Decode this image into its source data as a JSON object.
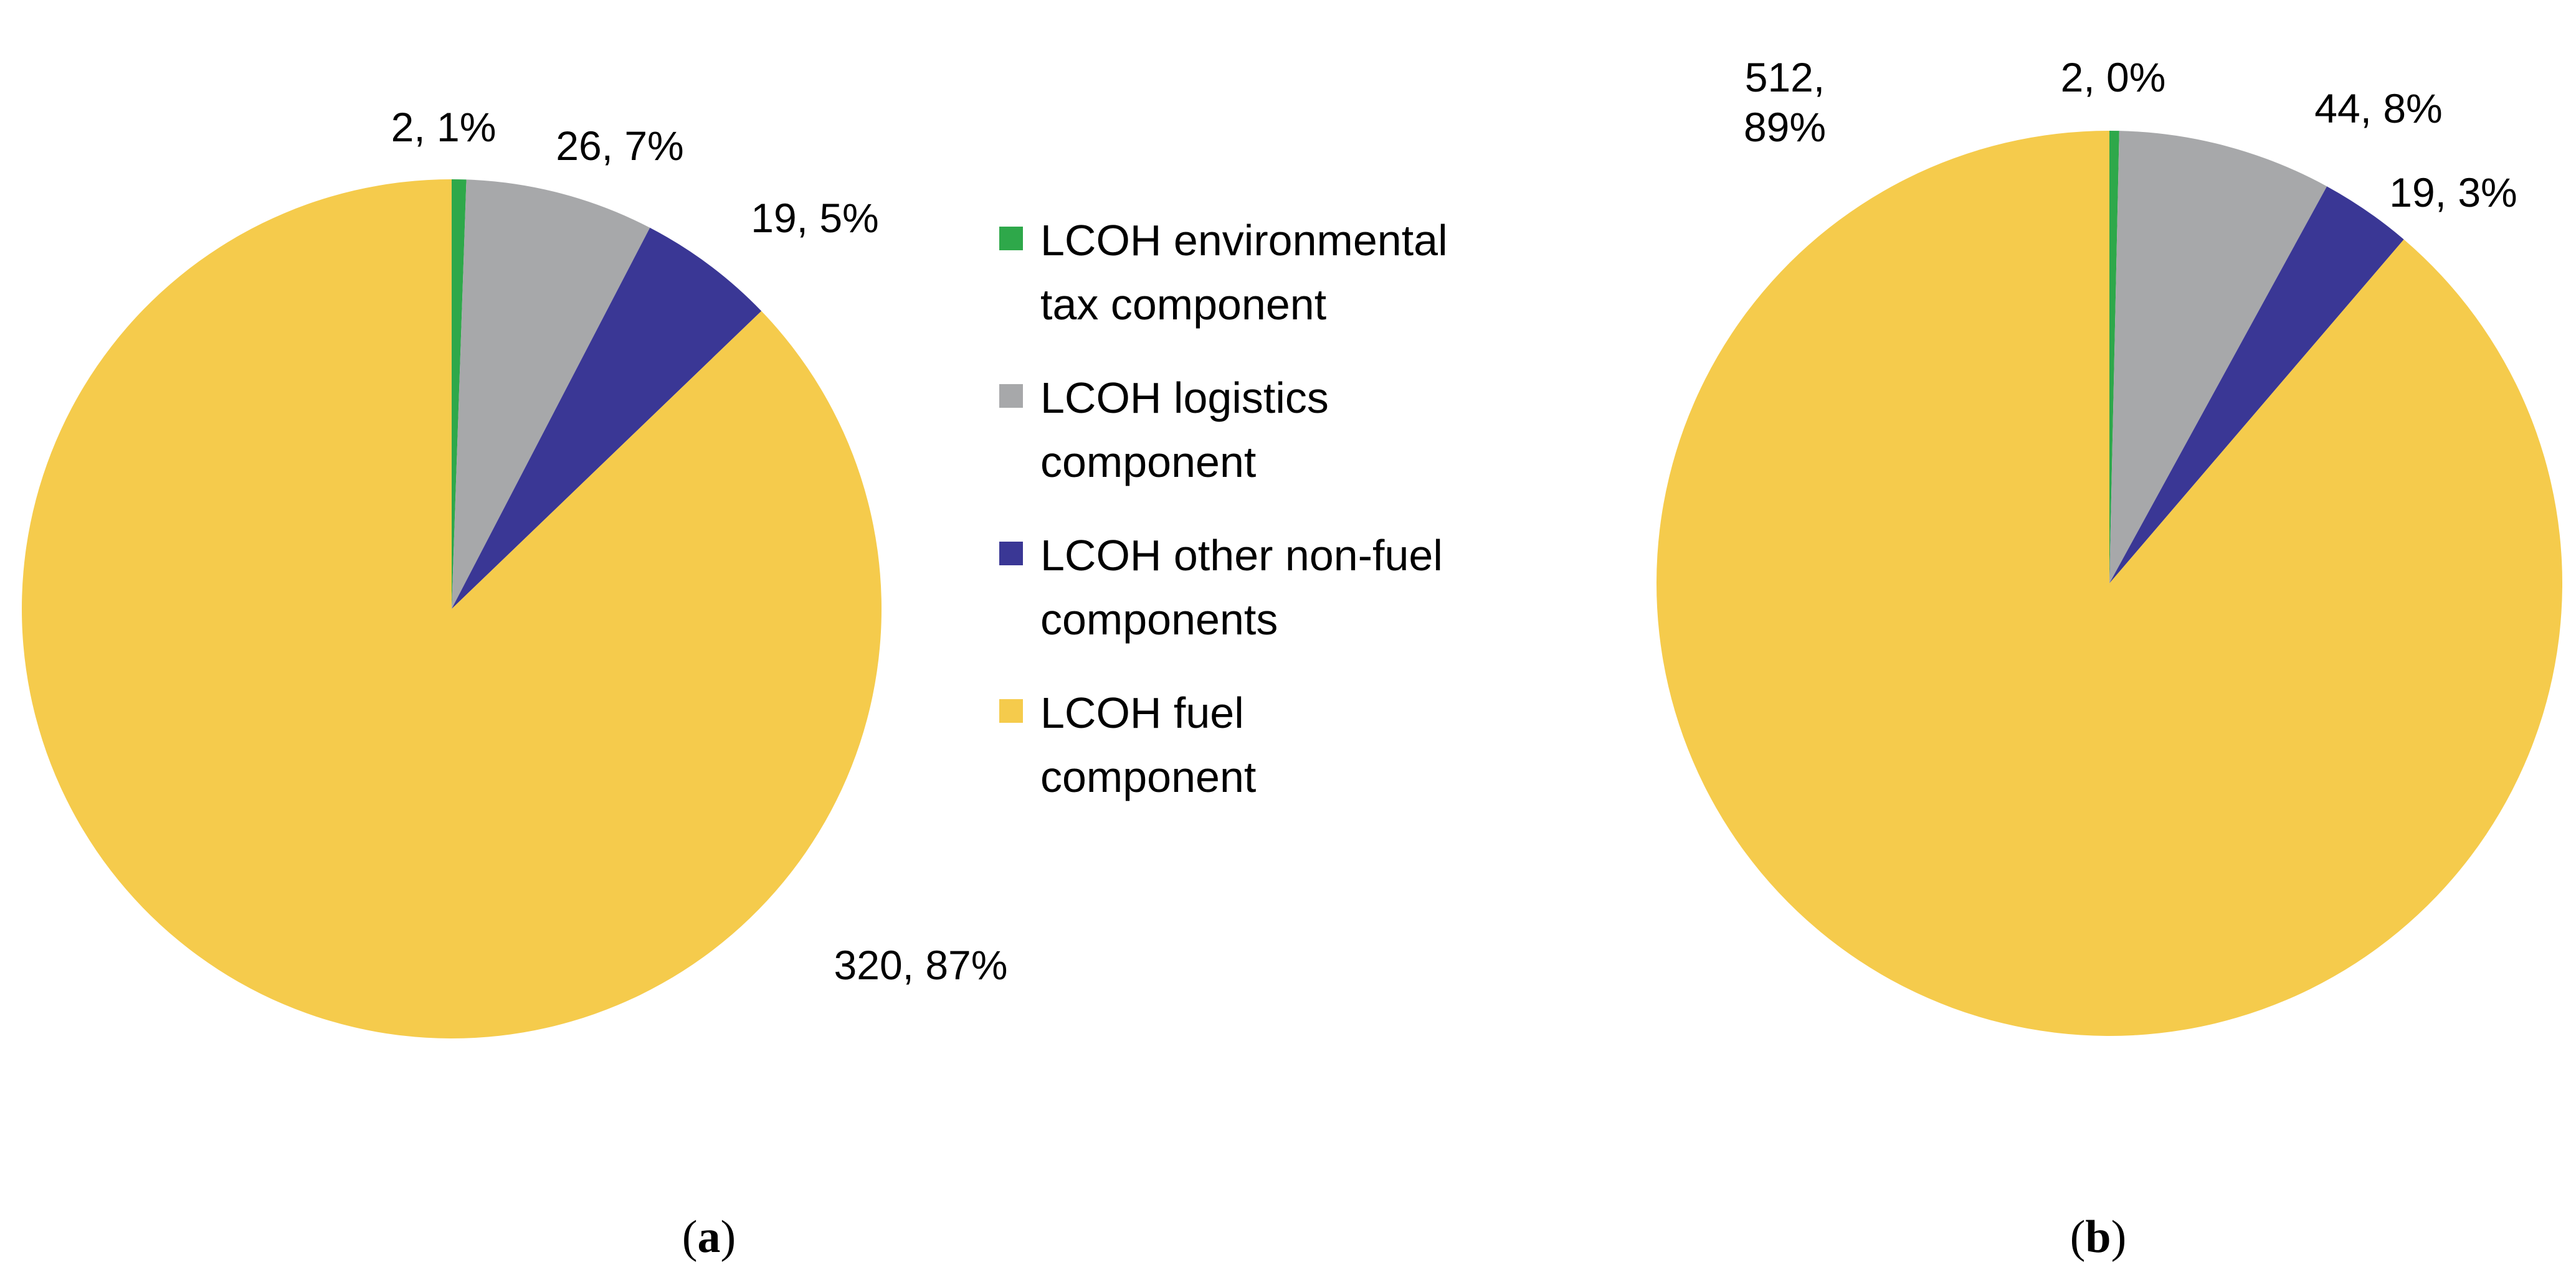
{
  "legend": {
    "items": [
      {
        "lines": [
          "LCOH environmental",
          "tax component"
        ],
        "color": "#2ea84a"
      },
      {
        "lines": [
          "LCOH logistics",
          "component"
        ],
        "color": "#a7a8aa"
      },
      {
        "lines": [
          "LCOH other non-fuel",
          "components"
        ],
        "color": "#3a3795"
      },
      {
        "lines": [
          "LCOH fuel",
          "component"
        ],
        "color": "#f5cb4c"
      }
    ]
  },
  "chart_data": [
    {
      "type": "pie",
      "caption": {
        "open": "(",
        "letter": "a",
        "close": ")"
      },
      "start": "12 o'clock, clockwise",
      "slices": [
        {
          "name": "LCOH environmental tax component",
          "value": 2,
          "label": [
            "2, 1%"
          ],
          "color": "#2ea84a"
        },
        {
          "name": "LCOH logistics component",
          "value": 26,
          "label": [
            "26, 7%"
          ],
          "color": "#a7a8aa"
        },
        {
          "name": "LCOH other non-fuel components",
          "value": 19,
          "label": [
            "19, 5%"
          ],
          "color": "#3a3795"
        },
        {
          "name": "LCOH fuel component",
          "value": 320,
          "label": [
            "320, 87%"
          ],
          "color": "#f5cb4c"
        }
      ]
    },
    {
      "type": "pie",
      "caption": {
        "open": "(",
        "letter": "b",
        "close": ")"
      },
      "start": "12 o'clock, clockwise",
      "slices": [
        {
          "name": "LCOH environmental tax component",
          "value": 2,
          "label": [
            "2, 0%"
          ],
          "color": "#2ea84a"
        },
        {
          "name": "LCOH logistics component",
          "value": 44,
          "label": [
            "44, 8%"
          ],
          "color": "#a7a8aa"
        },
        {
          "name": "LCOH other non-fuel components",
          "value": 19,
          "label": [
            "19, 3%"
          ],
          "color": "#3a3795"
        },
        {
          "name": "LCOH fuel component",
          "value": 512,
          "label": [
            "512,",
            "89%"
          ],
          "color": "#f5cb4c"
        }
      ]
    }
  ]
}
